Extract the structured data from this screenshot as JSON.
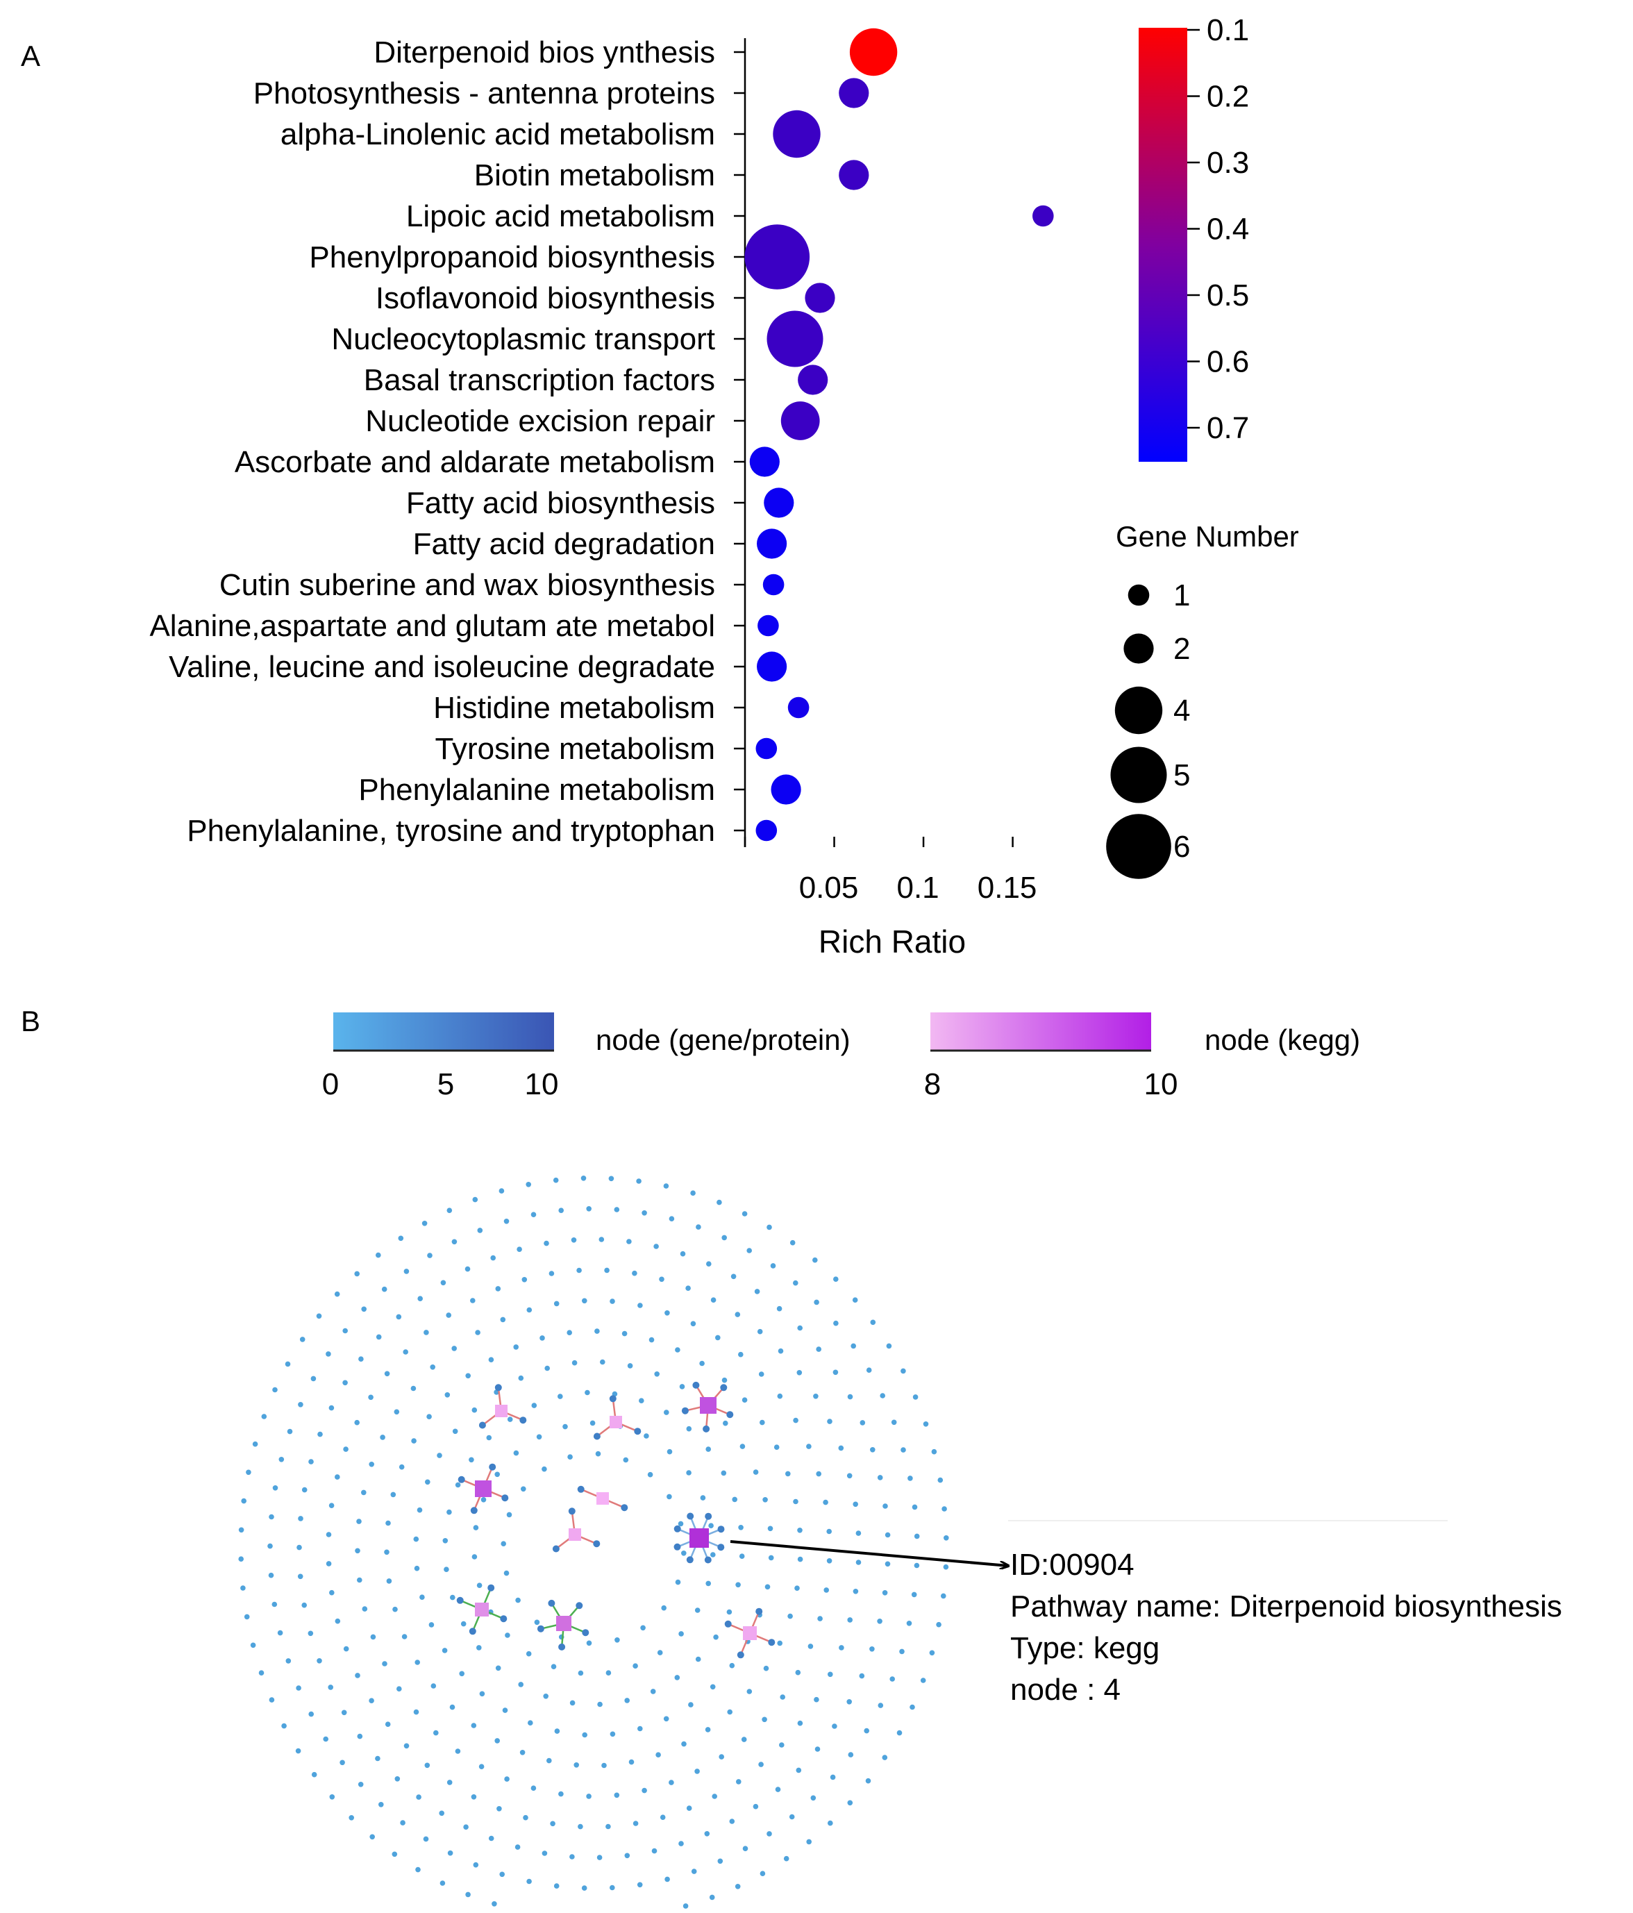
{
  "panel_a_label": "A",
  "panel_b_label": "B",
  "chart_data": [
    {
      "type": "scatter",
      "subtype": "bubble",
      "title": "",
      "xlabel": "Rich Ratio",
      "ylabel": "",
      "xlim": [
        0.0,
        0.17
      ],
      "xticks": [
        0.05,
        0.1,
        0.15
      ],
      "xtick_labels": [
        "0.05",
        "0.1",
        "0.15"
      ],
      "categories": [
        "Diterpenoid bios ynthesis",
        "Photosynthesis - antenna proteins",
        "alpha-Linolenic acid metabolism",
        "Biotin metabolism",
        "Lipoic acid metabolism",
        "Phenylpropanoid biosynthesis",
        "Isoflavonoid biosynthesis",
        "Nucleocytoplasmic transport",
        "Basal transcription factors",
        "Nucleotide excision repair",
        "Ascorbate and aldarate metabolism",
        "Fatty acid biosynthesis",
        "Fatty acid degradation",
        "Cutin suberine and wax biosynthesis",
        "Alanine,aspartate and glutam ate metabol",
        "Valine, leucine and isoleucine degradate",
        "Histidine metabolism",
        "Tyrosine metabolism",
        "Phenylalanine metabolism",
        "Phenylalanine, tyrosine and tryptophan"
      ],
      "rich_ratio": [
        0.072,
        0.061,
        0.029,
        0.061,
        0.167,
        0.018,
        0.042,
        0.028,
        0.038,
        0.031,
        0.011,
        0.019,
        0.015,
        0.016,
        0.013,
        0.015,
        0.03,
        0.012,
        0.023,
        0.012
      ],
      "gene_number": [
        4,
        2,
        4,
        2,
        1,
        6,
        2,
        5,
        2,
        3,
        2,
        2,
        2,
        1,
        1,
        2,
        1,
        1,
        2,
        1
      ],
      "qvalue": [
        0.1,
        0.6,
        0.6,
        0.6,
        0.6,
        0.6,
        0.6,
        0.6,
        0.6,
        0.6,
        0.72,
        0.72,
        0.72,
        0.72,
        0.72,
        0.72,
        0.7,
        0.72,
        0.72,
        0.72
      ],
      "color_legend": {
        "ticks": [
          0.1,
          0.2,
          0.3,
          0.4,
          0.5,
          0.6,
          0.7
        ],
        "tick_labels": [
          "0.1",
          "0.2",
          "0.3",
          "0.4",
          "0.5",
          "0.6",
          "0.7"
        ],
        "range": [
          0.1,
          0.75
        ],
        "low_color": "#ff0000",
        "high_color": "#0000ff"
      },
      "size_legend": {
        "title": "Gene Number",
        "values": [
          1,
          2,
          4,
          5,
          6
        ],
        "labels": [
          "1",
          "2",
          "4",
          "5",
          "6"
        ]
      },
      "point_color_scale": "qvalue"
    },
    {
      "type": "network",
      "legend_gene": {
        "label": "node (gene/protein)",
        "tick_labels": [
          "0",
          "5",
          "10"
        ],
        "range": [
          0,
          10
        ],
        "color_from": "#5ab4ec",
        "color_to": "#3a55b4"
      },
      "legend_kegg": {
        "label": "node (kegg)",
        "tick_labels": [
          "8",
          "10"
        ],
        "range": [
          8,
          10
        ],
        "color_from": "#f2b8f2",
        "color_to": "#b21fe6"
      },
      "gene_node_color": "#4fa3dc",
      "kegg_nodes": [
        {
          "degree": 4,
          "color": "#c052e0",
          "edge_color": "#e07a7a"
        },
        {
          "degree": 3,
          "color": "#f0a8f0",
          "edge_color": "#e07a7a"
        },
        {
          "degree": 3,
          "color": "#f0a8f0",
          "edge_color": "#e07a7a"
        },
        {
          "degree": 5,
          "color": "#c052e0",
          "edge_color": "#e07a7a"
        },
        {
          "degree": 2,
          "color": "#f5b0f5",
          "edge_color": "#e07a7a"
        },
        {
          "degree": 3,
          "color": "#f0a8f0",
          "edge_color": "#e07a7a"
        },
        {
          "degree": 8,
          "color": "#b030d8",
          "edge_color": "#7aaee0"
        },
        {
          "degree": 4,
          "color": "#e090e8",
          "edge_color": "#4caf50"
        },
        {
          "degree": 5,
          "color": "#d070e0",
          "edge_color": "#4caf50"
        },
        {
          "degree": 4,
          "color": "#f0a8f0",
          "edge_color": "#e07a7a"
        }
      ],
      "callout": {
        "id_line": "ID:00904",
        "name_line": "Pathway name: Diterpenoid biosynthesis",
        "type_line": "Type: kegg",
        "node_line": "node : 4"
      }
    }
  ]
}
